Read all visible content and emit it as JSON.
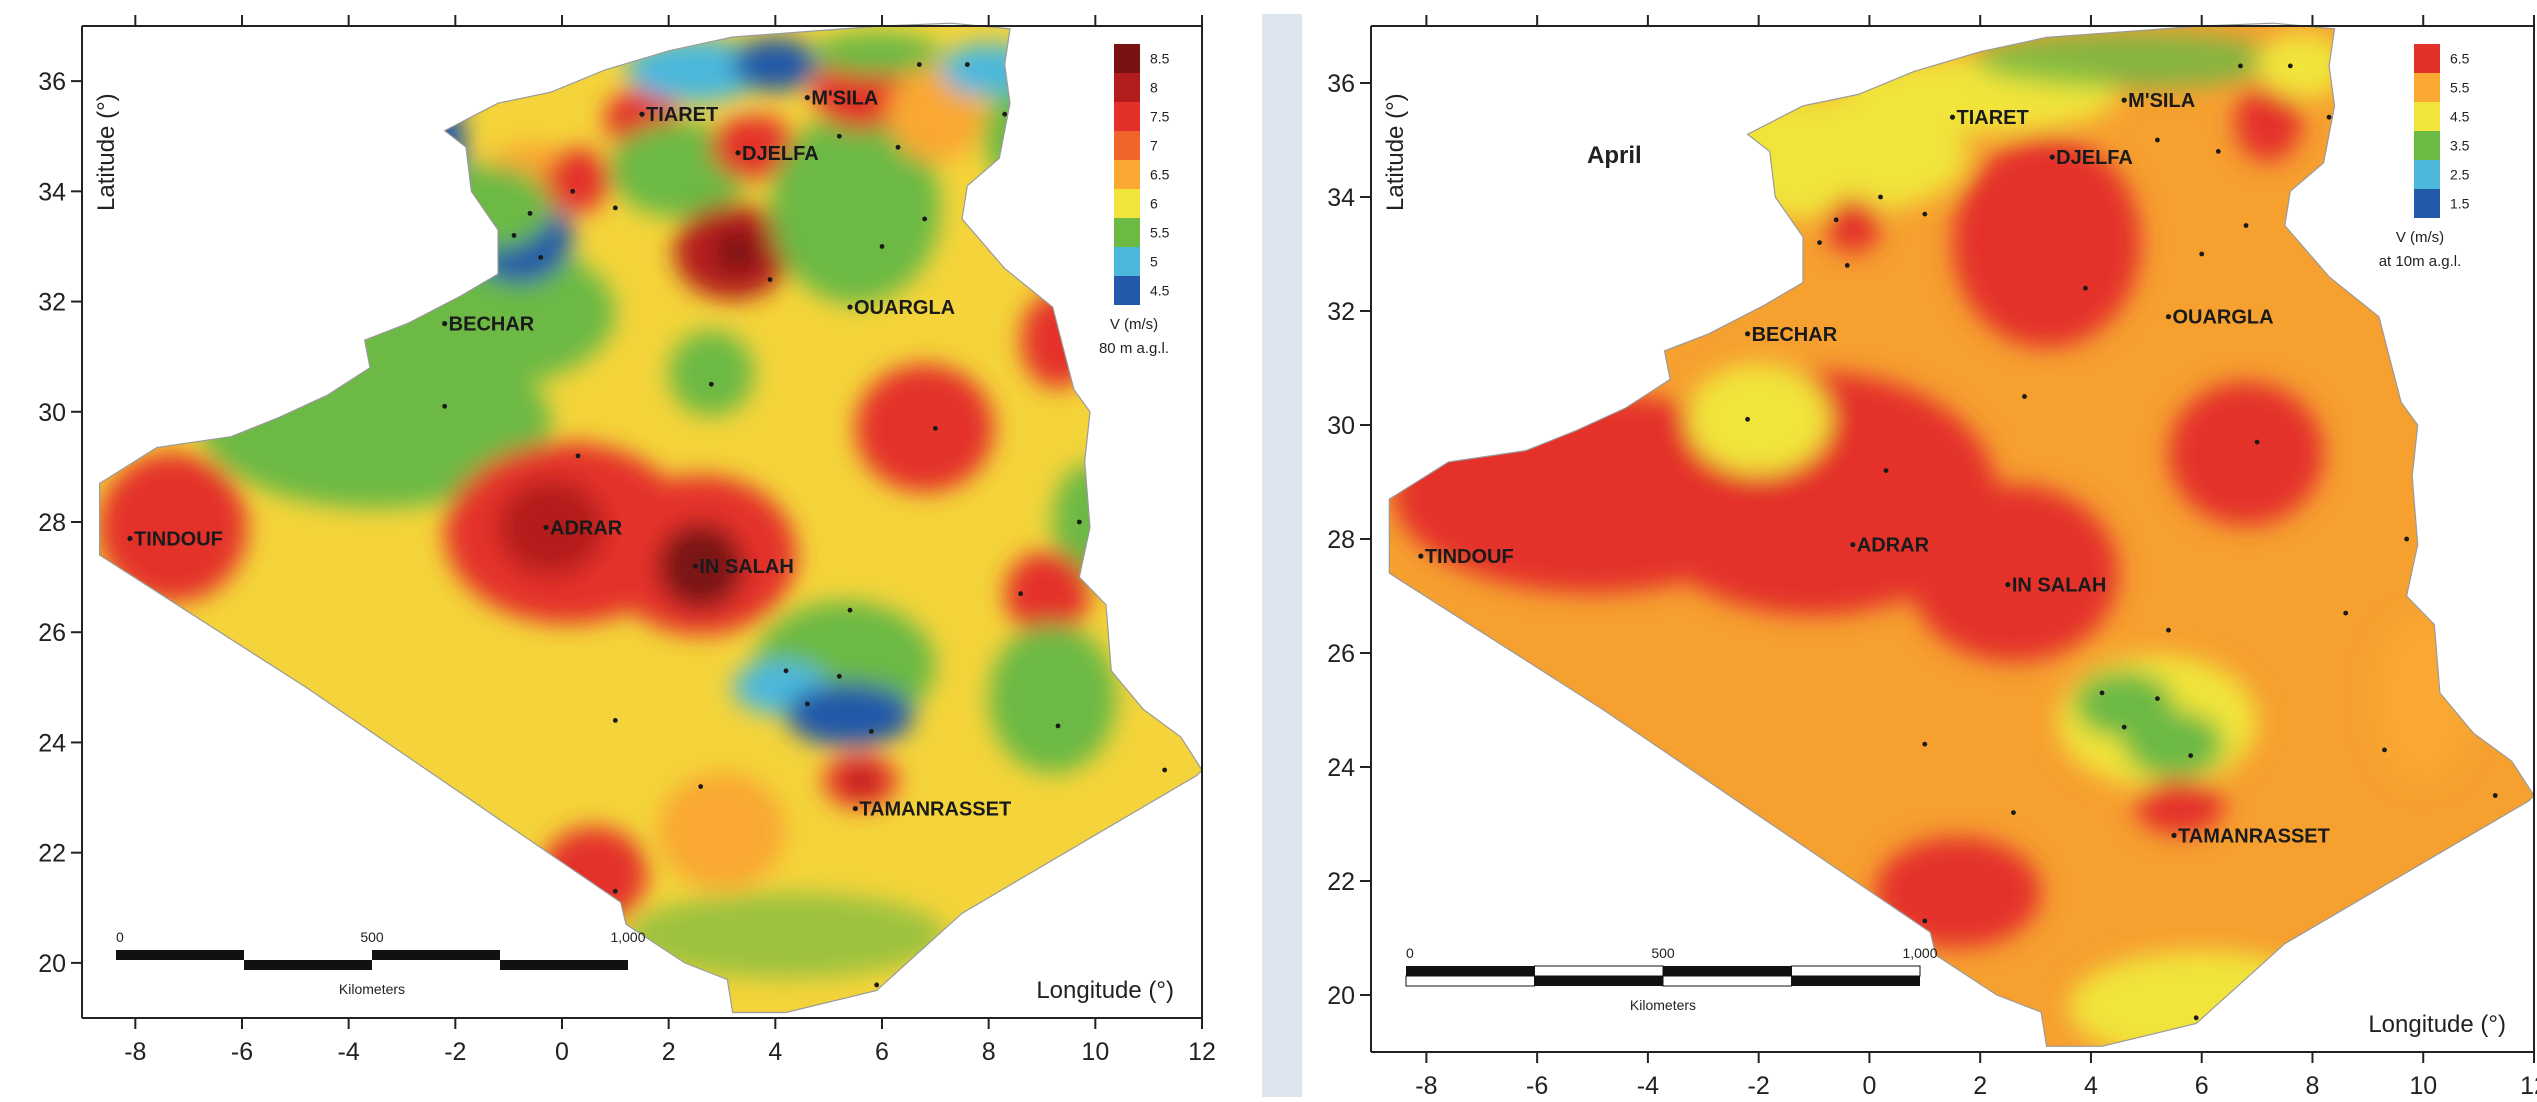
{
  "left_map": {
    "x_ticks": [
      "-8",
      "-6",
      "-4",
      "-2",
      "0",
      "2",
      "4",
      "6",
      "8",
      "10",
      "12"
    ],
    "y_ticks": [
      "20",
      "22",
      "24",
      "26",
      "28",
      "30",
      "32",
      "34",
      "36"
    ],
    "xlabel": "Longitude (°)",
    "ylabel": "Latitude (°)",
    "title": "",
    "legend": {
      "title": "V (m/s)",
      "subtitle": "80 m a.g.l.",
      "entries": [
        {
          "label": "8.5",
          "color": "#7a1212"
        },
        {
          "label": "8",
          "color": "#b41d1d"
        },
        {
          "label": "7.5",
          "color": "#e4302a"
        },
        {
          "label": "7",
          "color": "#f2652a"
        },
        {
          "label": "6.5",
          "color": "#f9a832"
        },
        {
          "label": "6",
          "color": "#f1e43a"
        },
        {
          "label": "5.5",
          "color": "#6cb944"
        },
        {
          "label": "5",
          "color": "#4bb8dc"
        },
        {
          "label": "4.5",
          "color": "#2359a8"
        }
      ]
    },
    "scale_bar": {
      "labels": [
        "0",
        "500",
        "1,000"
      ],
      "unit": "Kilometers"
    },
    "cities": [
      {
        "name": "TIARET",
        "lon": 1.5,
        "lat": 35.4
      },
      {
        "name": "M'SILA",
        "lon": 4.6,
        "lat": 35.7
      },
      {
        "name": "DJELFA",
        "lon": 3.3,
        "lat": 34.7
      },
      {
        "name": "BECHAR",
        "lon": -2.2,
        "lat": 31.6
      },
      {
        "name": "OUARGLA",
        "lon": 5.4,
        "lat": 31.9
      },
      {
        "name": "TINDOUF",
        "lon": -8.1,
        "lat": 27.7
      },
      {
        "name": "ADRAR",
        "lon": -0.3,
        "lat": 27.9
      },
      {
        "name": "IN SALAH",
        "lon": 2.5,
        "lat": 27.2
      },
      {
        "name": "TAMANRASSET",
        "lon": 5.5,
        "lat": 22.8
      }
    ]
  },
  "right_map": {
    "x_ticks": [
      "-8",
      "-6",
      "-4",
      "-2",
      "0",
      "2",
      "4",
      "6",
      "8",
      "10",
      "12"
    ],
    "y_ticks": [
      "20",
      "22",
      "24",
      "26",
      "28",
      "30",
      "32",
      "34",
      "36"
    ],
    "xlabel": "Longitude (°)",
    "ylabel": "Latitude (°)",
    "title": "April",
    "legend": {
      "title": "V (m/s)",
      "subtitle": "at 10m a.g.l.",
      "entries": [
        {
          "label": "6.5",
          "color": "#e4302a"
        },
        {
          "label": "5.5",
          "color": "#f9a832"
        },
        {
          "label": "4.5",
          "color": "#f1e43a"
        },
        {
          "label": "3.5",
          "color": "#6cb944"
        },
        {
          "label": "2.5",
          "color": "#4bb8dc"
        },
        {
          "label": "1.5",
          "color": "#2359a8"
        }
      ]
    },
    "scale_bar": {
      "labels": [
        "0",
        "500",
        "1,000"
      ],
      "unit": "Kilometers"
    },
    "cities": [
      {
        "name": "TIARET",
        "lon": 1.5,
        "lat": 35.4
      },
      {
        "name": "M'SILA",
        "lon": 4.6,
        "lat": 35.7
      },
      {
        "name": "DJELFA",
        "lon": 3.3,
        "lat": 34.7
      },
      {
        "name": "BECHAR",
        "lon": -2.2,
        "lat": 31.6
      },
      {
        "name": "OUARGLA",
        "lon": 5.4,
        "lat": 31.9
      },
      {
        "name": "TINDOUF",
        "lon": -8.1,
        "lat": 27.7
      },
      {
        "name": "ADRAR",
        "lon": -0.3,
        "lat": 27.9
      },
      {
        "name": "IN SALAH",
        "lon": 2.5,
        "lat": 27.2
      },
      {
        "name": "TAMANRASSET",
        "lon": 5.5,
        "lat": 22.8
      }
    ]
  }
}
